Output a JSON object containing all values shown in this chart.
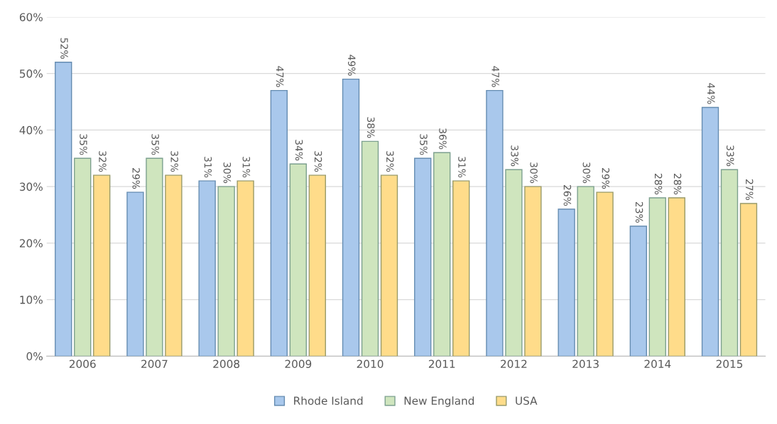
{
  "chart_data": {
    "type": "bar",
    "categories": [
      "2006",
      "2007",
      "2008",
      "2009",
      "2010",
      "2011",
      "2012",
      "2013",
      "2014",
      "2015"
    ],
    "series": [
      {
        "name": "Rhode Island",
        "color": "#a9c8ec",
        "values": [
          52,
          29,
          31,
          47,
          49,
          35,
          47,
          26,
          23,
          44
        ],
        "value_labels": [
          "52%",
          "29%",
          "31%",
          "47%",
          "49%",
          "35%",
          "47%",
          "26%",
          "23%",
          "44%"
        ]
      },
      {
        "name": "New England",
        "color": "#cfe5be",
        "values": [
          35,
          35,
          30,
          34,
          38,
          36,
          33,
          30,
          28,
          33
        ],
        "value_labels": [
          "35%",
          "35%",
          "30%",
          "34%",
          "38%",
          "36%",
          "33%",
          "30%",
          "28%",
          "33%"
        ]
      },
      {
        "name": "USA",
        "color": "#ffdc8a",
        "values": [
          32,
          32,
          31,
          32,
          32,
          31,
          30,
          29,
          28,
          27
        ],
        "value_labels": [
          "32%",
          "32%",
          "31%",
          "32%",
          "32%",
          "31%",
          "30%",
          "29%",
          "28%",
          "27%"
        ]
      }
    ],
    "ylim": [
      0,
      60
    ],
    "yticks": [
      {
        "value": 0,
        "label": "0%"
      },
      {
        "value": 10,
        "label": "10%"
      },
      {
        "value": 20,
        "label": "20%"
      },
      {
        "value": 30,
        "label": "30%"
      },
      {
        "value": 40,
        "label": "40%"
      },
      {
        "value": 50,
        "label": "50%"
      },
      {
        "value": 60,
        "label": "60%"
      }
    ],
    "grid": "y",
    "legend": "bottom"
  }
}
